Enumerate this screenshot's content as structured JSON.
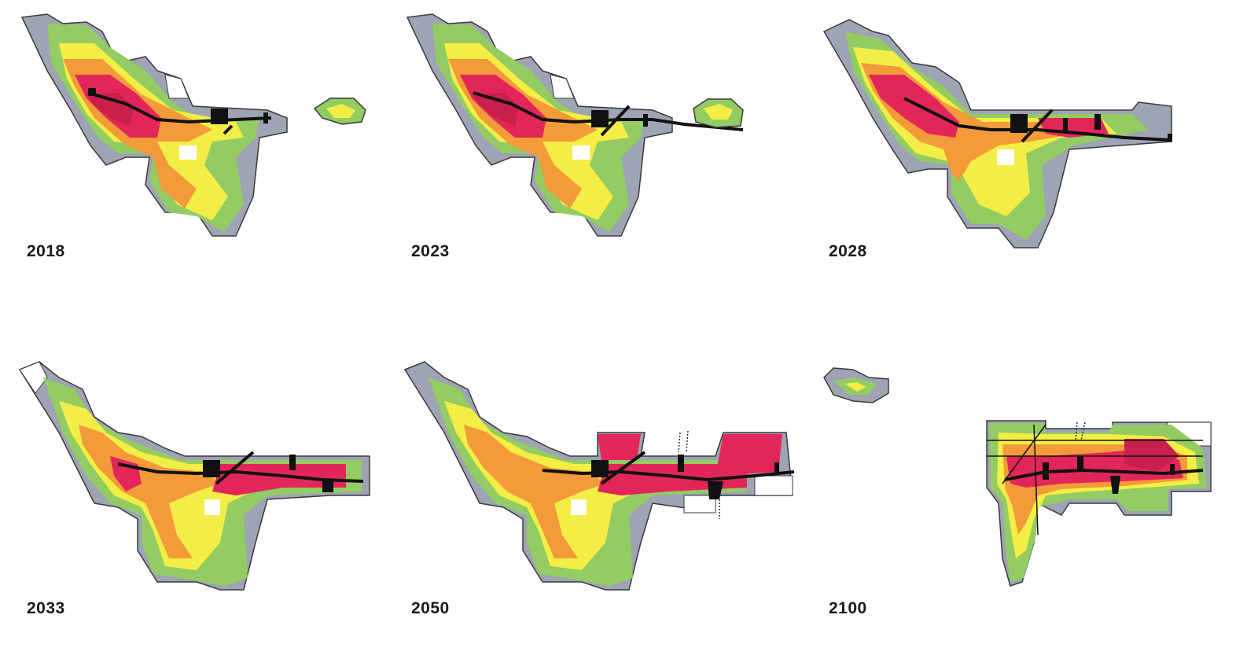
{
  "palette": {
    "gray": "#9ea4b4",
    "light_gray": "#c9ccd6",
    "green": "#93cc62",
    "yellow_green": "#c9df57",
    "yellow": "#f3ee45",
    "orange": "#f39a3a",
    "dark_orange": "#f06c2c",
    "red": "#e2265a",
    "black": "#111111",
    "outline": "#3a3a3a"
  },
  "maps": [
    {
      "year": "2018",
      "hotspot_level": "west-center",
      "rail_line_extent": "partial"
    },
    {
      "year": "2023",
      "hotspot_level": "west-center",
      "rail_line_extent": "extended-east"
    },
    {
      "year": "2028",
      "hotspot_level": "west-center and east",
      "rail_line_extent": "full"
    },
    {
      "year": "2033",
      "hotspot_level": "east corridor",
      "rail_line_extent": "full"
    },
    {
      "year": "2050",
      "hotspot_level": "east corridor",
      "rail_line_extent": "full"
    },
    {
      "year": "2100",
      "hotspot_level": "east grid district",
      "rail_line_extent": "grid"
    }
  ]
}
